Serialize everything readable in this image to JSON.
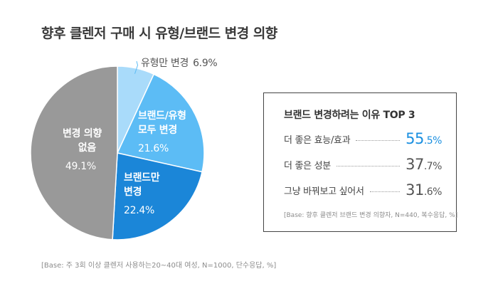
{
  "title": "향후 클렌저 구매 시 유형/브랜드 변경 의향",
  "base_note": "[Base: 주 3회 이상 클렌저 사용하는20~40대 여성, N=1000, 단수응답, %]",
  "chart_data": [
    {
      "type": "pie",
      "title": "향후 클렌저 구매 시 유형/브랜드 변경 의향",
      "slices": [
        {
          "label_lines": [
            "유형만 변경"
          ],
          "value": 6.9,
          "value_label": "6.9%",
          "color": "#a9dbfa"
        },
        {
          "label_lines": [
            "브랜드/유형",
            "모두 변경"
          ],
          "value": 21.6,
          "value_label": "21.6%",
          "color": "#5cbcf5"
        },
        {
          "label_lines": [
            "브랜드만",
            "변경"
          ],
          "value": 22.4,
          "value_label": "22.4%",
          "color": "#1b86d8"
        },
        {
          "label_lines": [
            "변경 의향",
            "없음"
          ],
          "value": 49.1,
          "value_label": "49.1%",
          "color": "#999999"
        }
      ]
    },
    {
      "type": "table",
      "title": "브랜드 변경하려는 이유 TOP 3",
      "rows": [
        {
          "label": "더 좋은 효능/효과",
          "value": 55.5,
          "int": "55",
          "dec": ".5%"
        },
        {
          "label": "더 좋은 성분",
          "value": 37.7,
          "int": "37",
          "dec": ".7%"
        },
        {
          "label": "그냥 바꿔보고 싶어서",
          "value": 31.6,
          "int": "31",
          "dec": ".6%"
        }
      ],
      "note": "[Base: 향후 클렌저 브랜드 변경 의향자, N=440, 복수응답, %]",
      "highlight_color": "#1a8fe0"
    }
  ]
}
